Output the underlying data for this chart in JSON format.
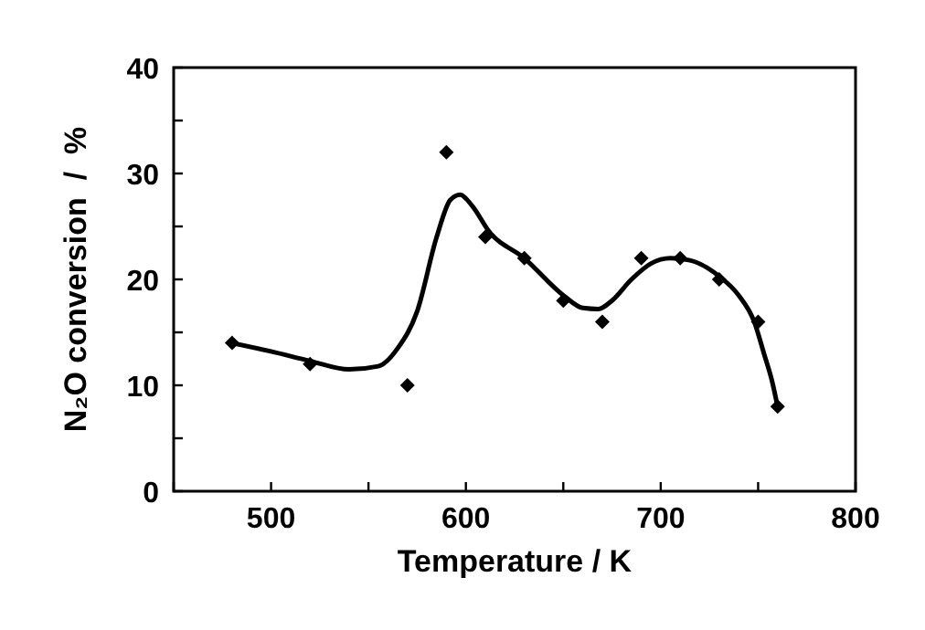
{
  "chart_data": {
    "type": "scatter",
    "xlabel": "Temperature / K",
    "ylabel": "N₂O conversion  /  %",
    "marker": "diamond",
    "grid": false,
    "xlim": [
      450,
      800
    ],
    "ylim": [
      0,
      40
    ],
    "xticks": [
      {
        "value": 450,
        "label": null
      },
      500,
      {
        "value": 550,
        "label": null
      },
      600,
      {
        "value": 650,
        "label": null
      },
      700,
      {
        "value": 750,
        "label": null
      },
      800
    ],
    "yticks": [
      0,
      {
        "value": 5,
        "label": null
      },
      10,
      {
        "value": 15,
        "label": null
      },
      20,
      {
        "value": 25,
        "label": null
      },
      30,
      {
        "value": 35,
        "label": null
      },
      40
    ],
    "series": [
      {
        "color": "#000000",
        "x": [
          480,
          520,
          570,
          590,
          610,
          630,
          650,
          670,
          690,
          710,
          730,
          750,
          760
        ],
        "values": [
          14,
          12,
          10,
          32,
          24,
          22,
          18,
          16,
          22,
          22,
          20,
          16,
          8
        ]
      },
      {
        "type": "line",
        "color": "#000000",
        "marker": "none",
        "line_style": "solid",
        "x": [
          480,
          500,
          520,
          540,
          555,
          565,
          575,
          585,
          592,
          597,
          603,
          612,
          630,
          650,
          660,
          668,
          675,
          685,
          695,
          705,
          715,
          730,
          740,
          748,
          753,
          757,
          760
        ],
        "values": [
          14,
          13.2,
          12.3,
          11.5,
          11.8,
          13.5,
          17,
          24,
          27.5,
          28,
          27,
          24.5,
          22,
          18.5,
          17.3,
          17.2,
          18,
          20,
          21.5,
          22,
          21.8,
          20.3,
          18.5,
          16,
          13,
          10.5,
          8
        ]
      }
    ]
  }
}
